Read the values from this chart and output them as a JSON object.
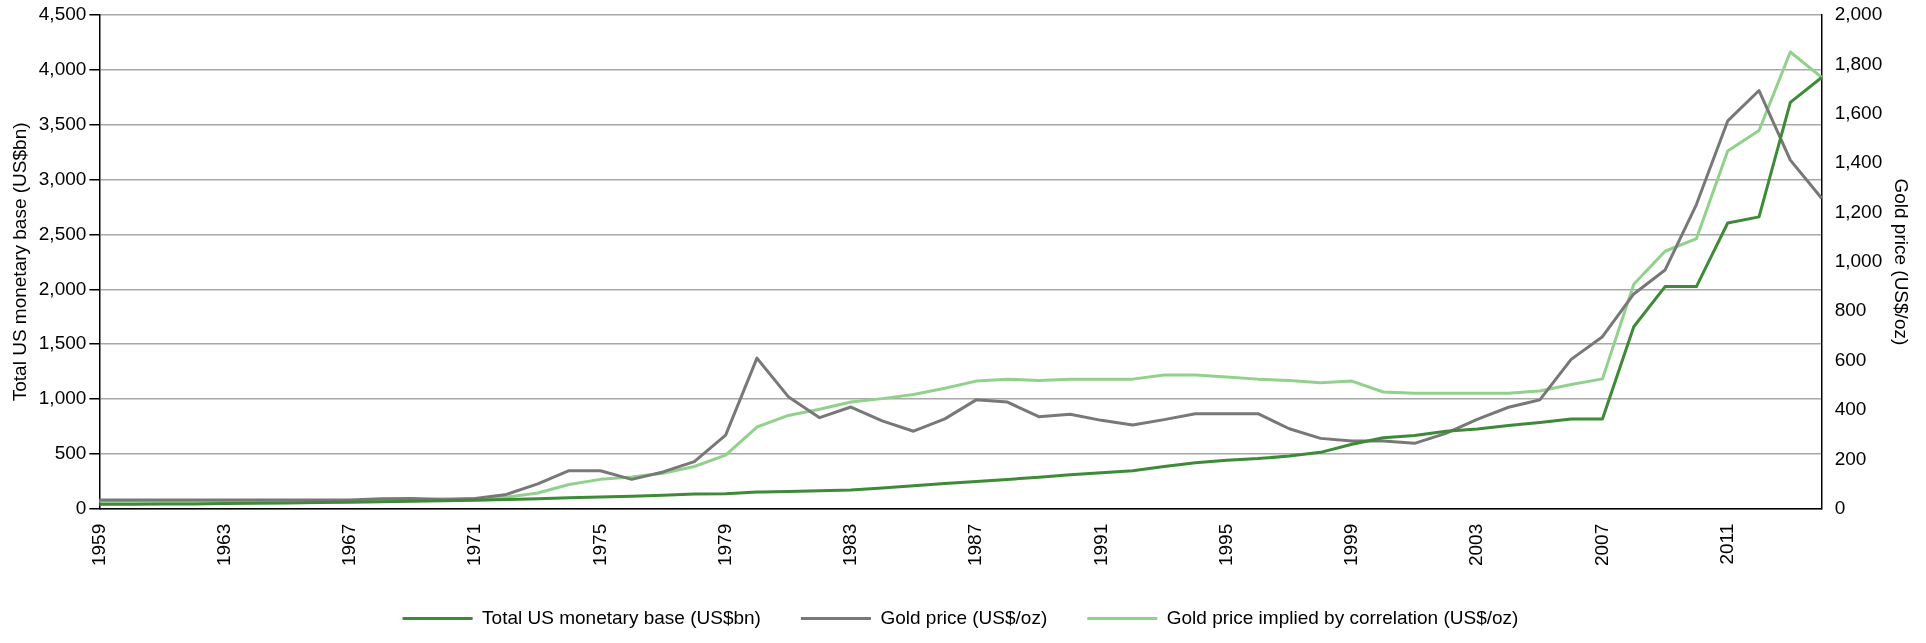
{
  "chart_data": {
    "type": "line",
    "categories": [
      "1959",
      null,
      null,
      null,
      "1963",
      null,
      null,
      null,
      "1967",
      null,
      null,
      null,
      "1971",
      null,
      null,
      null,
      "1975",
      null,
      null,
      null,
      "1979",
      null,
      null,
      null,
      "1983",
      null,
      null,
      null,
      "1987",
      null,
      null,
      null,
      "1991",
      null,
      null,
      null,
      "1995",
      null,
      null,
      null,
      "1999",
      null,
      null,
      null,
      "2003",
      null,
      null,
      null,
      "2007",
      null,
      null,
      null,
      "2011",
      null,
      null,
      null
    ],
    "ylabel": "Total US monetary base (US$bn)",
    "y2label": "Gold price (US$/oz)",
    "ylim": [
      0,
      4500
    ],
    "yticks": [
      0,
      {
        "value": 500,
        "label": "500"
      },
      {
        "value": 1000,
        "label": "1,000"
      },
      {
        "value": 1500,
        "label": "1,500"
      },
      {
        "value": 2000,
        "label": "2,000"
      },
      {
        "value": 2500,
        "label": "2,500"
      },
      {
        "value": 3000,
        "label": "3,000"
      },
      {
        "value": 3500,
        "label": "3,500"
      },
      {
        "value": 4000,
        "label": "4,000"
      },
      {
        "value": 4500,
        "label": "4,500"
      }
    ],
    "y2lim": [
      0,
      2000
    ],
    "y2ticks": [
      0,
      200,
      400,
      600,
      800,
      {
        "value": 1000,
        "label": "1,000"
      },
      {
        "value": 1200,
        "label": "1,200"
      },
      {
        "value": 1400,
        "label": "1,400"
      },
      {
        "value": 1600,
        "label": "1,600"
      },
      {
        "value": 1800,
        "label": "1,800"
      },
      {
        "value": 2000,
        "label": "2,000"
      }
    ],
    "grid": "y",
    "legend": "bottom",
    "marker": "none",
    "line_style": "solid",
    "series": [
      {
        "name": "Total US monetary base (US$bn)",
        "color": "#3d8b37",
        "values": [
          40,
          40,
          42,
          44,
          47,
          50,
          53,
          56,
          59,
          64,
          68,
          72,
          78,
          84,
          91,
          100,
          107,
          114,
          124,
          134,
          137,
          152,
          156,
          164,
          171,
          190,
          210,
          229,
          248,
          267,
          286,
          309,
          328,
          347,
          385,
          419,
          442,
          457,
          480,
          514,
          588,
          647,
          667,
          707,
          727,
          758,
          786,
          818,
          818,
          1659,
          2025,
          2025,
          2604,
          2660,
          3704,
          3930
        ]
      },
      {
        "name": "Gold price (US$/oz)",
        "color": "#787878",
        "axis": "y2",
        "values": [
          35,
          35,
          35,
          35,
          35,
          35,
          35,
          35,
          35,
          40,
          41,
          36,
          41,
          58,
          101,
          154,
          154,
          119,
          149,
          191,
          298,
          610,
          454,
          369,
          412,
          356,
          314,
          364,
          441,
          432,
          373,
          383,
          358,
          339,
          361,
          385,
          385,
          385,
          324,
          285,
          274,
          274,
          265,
          305,
          362,
          411,
          441,
          605,
          697,
          870,
          967,
          1232,
          1571,
          1694,
          1412,
          1258
        ]
      },
      {
        "name": "Gold price implied by correlation (US$/oz)",
        "color": "#92d18c",
        "axis": "y2",
        "values": [
          30,
          30,
          30,
          30,
          30,
          30,
          30,
          30,
          30,
          35,
          38,
          40,
          40,
          47,
          64,
          98,
          119,
          129,
          144,
          171,
          217,
          331,
          378,
          403,
          432,
          446,
          463,
          488,
          517,
          525,
          519,
          525,
          525,
          525,
          542,
          542,
          534,
          525,
          519,
          510,
          517,
          473,
          468,
          468,
          468,
          468,
          477,
          503,
          526,
          909,
          1043,
          1094,
          1449,
          1532,
          1850,
          1747
        ]
      }
    ]
  }
}
